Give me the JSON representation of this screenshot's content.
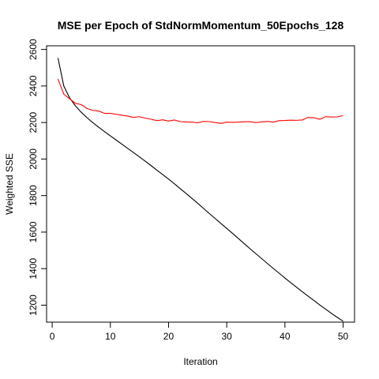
{
  "chart_data": {
    "type": "line",
    "title": "MSE per Epoch of StdNormMomentum_50Epochs_128",
    "xlabel": "Iteration",
    "ylabel": "Weighted SSE",
    "xlim": [
      -0.96,
      51.96
    ],
    "ylim": [
      1107,
      2620
    ],
    "xticks": [
      0,
      10,
      20,
      30,
      40,
      50
    ],
    "yticks": [
      1200,
      1400,
      1600,
      1800,
      2000,
      2200,
      2400,
      2600
    ],
    "grid": false,
    "legend": "none",
    "series": [
      {
        "color": "#000000",
        "x": [
          1,
          2,
          3,
          4,
          5,
          6,
          7,
          8,
          9,
          10,
          11,
          12,
          13,
          14,
          15,
          16,
          17,
          18,
          19,
          20,
          21,
          22,
          23,
          24,
          25,
          26,
          27,
          28,
          29,
          30,
          31,
          32,
          33,
          34,
          35,
          36,
          37,
          38,
          39,
          40,
          41,
          42,
          43,
          44,
          45,
          46,
          47,
          48,
          49,
          50
        ],
        "values": [
          2553,
          2400,
          2335,
          2291,
          2256,
          2226,
          2199,
          2174,
          2150,
          2127,
          2104,
          2081,
          2058,
          2035,
          2012,
          1988,
          1964,
          1939,
          1915,
          1890,
          1865,
          1838,
          1812,
          1785,
          1758,
          1730,
          1702,
          1675,
          1647,
          1620,
          1593,
          1565,
          1537,
          1509,
          1482,
          1455,
          1428,
          1401,
          1375,
          1349,
          1323,
          1298,
          1273,
          1249,
          1225,
          1201,
          1178,
          1155,
          1133,
          1112
        ]
      },
      {
        "color": "#ff0000",
        "x": [
          1,
          2,
          3,
          4,
          5,
          6,
          7,
          8,
          9,
          10,
          11,
          12,
          13,
          14,
          15,
          16,
          17,
          18,
          19,
          20,
          21,
          22,
          23,
          24,
          25,
          26,
          27,
          28,
          29,
          30,
          31,
          32,
          33,
          34,
          35,
          36,
          37,
          38,
          39,
          40,
          41,
          42,
          43,
          44,
          45,
          46,
          47,
          48,
          49,
          50
        ],
        "values": [
          2438,
          2355,
          2330,
          2305,
          2298,
          2277,
          2266,
          2263,
          2250,
          2250,
          2245,
          2240,
          2235,
          2228,
          2232,
          2224,
          2218,
          2210,
          2215,
          2208,
          2214,
          2205,
          2203,
          2202,
          2198,
          2206,
          2205,
          2200,
          2195,
          2202,
          2201,
          2202,
          2204,
          2204,
          2200,
          2203,
          2206,
          2202,
          2210,
          2211,
          2213,
          2212,
          2214,
          2228,
          2226,
          2218,
          2232,
          2230,
          2231,
          2238
        ]
      }
    ]
  }
}
